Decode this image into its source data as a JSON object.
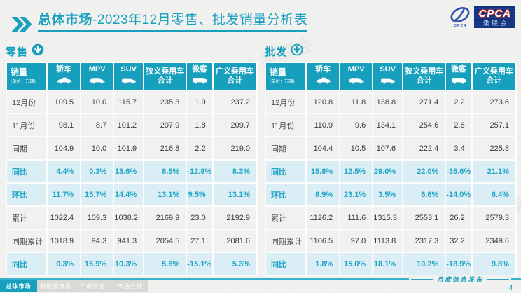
{
  "page": {
    "title_bold": "总体市场",
    "title_rest": "-2023年12月零售、批发销量分析表",
    "footer_note": "月度信息发布",
    "page_number": "4",
    "watermark": "CPCA 乘联会"
  },
  "logo": {
    "cpca_text": "CPCA",
    "org_text": "乘联会",
    "emblem_sub": "CPCA"
  },
  "table": {
    "first_header": "销量",
    "first_header_sub": "(单位：万辆)",
    "columns": [
      {
        "label": "轿车",
        "icon": "sedan-icon"
      },
      {
        "label": "MPV",
        "icon": "mpv-icon"
      },
      {
        "label": "SUV",
        "icon": "suv-icon"
      },
      {
        "label": "狭义乘用车合计",
        "icon": null
      },
      {
        "label": "微客",
        "icon": "microvan-icon"
      },
      {
        "label": "广义乘用车合计",
        "icon": null
      }
    ]
  },
  "retail": {
    "section_label": "零售",
    "rows": [
      {
        "label": "12月份",
        "highlight": false,
        "values": [
          "109.5",
          "10.0",
          "115.7",
          "235.3",
          "1.9",
          "237.2"
        ]
      },
      {
        "label": "11月份",
        "highlight": false,
        "values": [
          "98.1",
          "8.7",
          "101.2",
          "207.9",
          "1.8",
          "209.7"
        ]
      },
      {
        "label": "同期",
        "highlight": false,
        "values": [
          "104.9",
          "10.0",
          "101.9",
          "216.8",
          "2.2",
          "219.0"
        ]
      },
      {
        "label": "同比",
        "highlight": true,
        "values": [
          "4.4%",
          "0.3%",
          "13.6%",
          "8.5%",
          "-12.8%",
          "8.3%"
        ]
      },
      {
        "label": "环比",
        "highlight": true,
        "values": [
          "11.7%",
          "15.7%",
          "14.4%",
          "13.1%",
          "9.5%",
          "13.1%"
        ]
      },
      {
        "label": "累计",
        "highlight": false,
        "values": [
          "1022.4",
          "109.3",
          "1038.2",
          "2169.9",
          "23.0",
          "2192.9"
        ]
      },
      {
        "label": "同期累计",
        "highlight": false,
        "values": [
          "1018.9",
          "94.3",
          "941.3",
          "2054.5",
          "27.1",
          "2081.6"
        ]
      },
      {
        "label": "同比",
        "highlight": true,
        "values": [
          "0.3%",
          "15.9%",
          "10.3%",
          "5.6%",
          "-15.1%",
          "5.3%"
        ]
      }
    ]
  },
  "wholesale": {
    "section_label": "批发",
    "rows": [
      {
        "label": "12月份",
        "highlight": false,
        "values": [
          "120.8",
          "11.8",
          "138.8",
          "271.4",
          "2.2",
          "273.6"
        ]
      },
      {
        "label": "11月份",
        "highlight": false,
        "values": [
          "110.9",
          "9.6",
          "134.1",
          "254.6",
          "2.6",
          "257.1"
        ]
      },
      {
        "label": "同期",
        "highlight": false,
        "values": [
          "104.4",
          "10.5",
          "107.6",
          "222.4",
          "3.4",
          "225.8"
        ]
      },
      {
        "label": "同比",
        "highlight": true,
        "values": [
          "15.8%",
          "12.5%",
          "29.0%",
          "22.0%",
          "-35.6%",
          "21.1%"
        ]
      },
      {
        "label": "环比",
        "highlight": true,
        "values": [
          "8.9%",
          "23.1%",
          "3.5%",
          "6.6%",
          "-14.0%",
          "6.4%"
        ]
      },
      {
        "label": "累计",
        "highlight": false,
        "values": [
          "1126.2",
          "111.6",
          "1315.3",
          "2553.1",
          "26.2",
          "2579.3"
        ]
      },
      {
        "label": "同期累计",
        "highlight": false,
        "values": [
          "1106.5",
          "97.0",
          "1113.8",
          "2317.3",
          "32.2",
          "2349.6"
        ]
      },
      {
        "label": "同比",
        "highlight": true,
        "values": [
          "1.8%",
          "15.0%",
          "18.1%",
          "10.2%",
          "-18.9%",
          "9.8%"
        ]
      }
    ]
  },
  "tabs": [
    {
      "name": "tab-overall-market",
      "label": "总体市场",
      "active": true
    },
    {
      "name": "tab-nev-market",
      "label": "新能源市场",
      "active": false
    },
    {
      "name": "tab-oem-ranking",
      "label": "厂商排名",
      "active": false
    },
    {
      "name": "tab-market-analysis",
      "label": "市场分析",
      "active": false
    }
  ],
  "colors": {
    "accent": "#17A0BE",
    "highlight_row_bg": "#DBEDF5",
    "highlight_text": "#1FA6C6",
    "logo_navy": "#14337F",
    "text_dark": "#3A3A3A"
  }
}
